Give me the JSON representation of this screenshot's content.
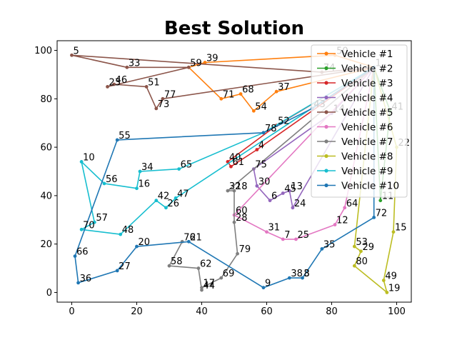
{
  "chart_data": {
    "type": "line",
    "title": "Best Solution",
    "xlabel": "",
    "ylabel": "",
    "xlim": [
      -4.5,
      104.5
    ],
    "ylim": [
      -4,
      104
    ],
    "xticks": [
      0,
      20,
      40,
      60,
      80,
      100
    ],
    "yticks": [
      0,
      20,
      40,
      60,
      80,
      100
    ],
    "grid": false,
    "legend_position": "top-right",
    "depot": {
      "id": "1",
      "x": 93,
      "y": 93
    },
    "series": [
      {
        "name": "Vehicle #1",
        "color": "#ff7f0e",
        "nodes": [
          "1",
          "50",
          "39",
          "59",
          "71",
          "68",
          "54",
          "37",
          "1"
        ],
        "points": [
          [
            93,
            93
          ],
          [
            81,
            98
          ],
          [
            41,
            95
          ],
          [
            36,
            93
          ],
          [
            46,
            80
          ],
          [
            52,
            82
          ],
          [
            56,
            75
          ],
          [
            63,
            83
          ],
          [
            93,
            93
          ]
        ]
      },
      {
        "name": "Vehicle #2",
        "color": "#2ca02c",
        "nodes": [
          "1",
          "11",
          "41",
          "1"
        ],
        "points": [
          [
            93,
            93
          ],
          [
            95,
            38
          ],
          [
            98,
            75
          ],
          [
            93,
            93
          ]
        ]
      },
      {
        "name": "Vehicle #3",
        "color": "#d62728",
        "nodes": [
          "1",
          "52",
          "40",
          "61",
          "4",
          "1"
        ],
        "points": [
          [
            93,
            93
          ],
          [
            63,
            69
          ],
          [
            48,
            54
          ],
          [
            49,
            52
          ],
          [
            57,
            59
          ],
          [
            93,
            93
          ]
        ]
      },
      {
        "name": "Vehicle #4",
        "color": "#9467bd",
        "nodes": [
          "1",
          "14",
          "75",
          "30",
          "6",
          "45",
          "13",
          "24",
          "1"
        ],
        "points": [
          [
            93,
            93
          ],
          [
            80,
            74
          ],
          [
            56,
            51
          ],
          [
            57,
            44
          ],
          [
            61,
            38
          ],
          [
            65,
            41
          ],
          [
            67,
            42
          ],
          [
            68,
            35
          ],
          [
            93,
            93
          ]
        ]
      },
      {
        "name": "Vehicle #5",
        "color": "#8c564b",
        "nodes": [
          "1",
          "74",
          "5",
          "33",
          "59",
          "23",
          "46",
          "51",
          "73",
          "77",
          "1"
        ],
        "points": [
          [
            93,
            93
          ],
          [
            77,
            91
          ],
          [
            0,
            98
          ],
          [
            17,
            93
          ],
          [
            36,
            93
          ],
          [
            11,
            85
          ],
          [
            13,
            86
          ],
          [
            23,
            85
          ],
          [
            26,
            76
          ],
          [
            28,
            80
          ],
          [
            93,
            93
          ]
        ]
      },
      {
        "name": "Vehicle #6",
        "color": "#e377c2",
        "nodes": [
          "1",
          "64",
          "12",
          "25",
          "7",
          "31",
          "60",
          "1"
        ],
        "points": [
          [
            93,
            93
          ],
          [
            84,
            35
          ],
          [
            81,
            28
          ],
          [
            69,
            22
          ],
          [
            65,
            22
          ],
          [
            60,
            25
          ],
          [
            50,
            32
          ],
          [
            93,
            93
          ]
        ]
      },
      {
        "name": "Vehicle #7",
        "color": "#7f7f7f",
        "nodes": [
          "1",
          "32",
          "18",
          "28",
          "79",
          "69",
          "17",
          "44",
          "62",
          "58",
          "76"
        ],
        "points": [
          [
            93,
            93
          ],
          [
            48,
            42
          ],
          [
            50,
            42
          ],
          [
            50,
            29
          ],
          [
            51,
            16
          ],
          [
            46,
            6
          ],
          [
            40,
            2
          ],
          [
            40,
            1
          ],
          [
            39,
            10
          ],
          [
            30,
            11
          ],
          [
            34,
            21
          ]
        ]
      },
      {
        "name": "Vehicle #8",
        "color": "#bcbd22",
        "nodes": [
          "1",
          "22",
          "15",
          "49",
          "19",
          "80",
          "29",
          "53",
          "1"
        ],
        "points": [
          [
            93,
            93
          ],
          [
            100,
            60
          ],
          [
            99,
            25
          ],
          [
            96,
            5
          ],
          [
            97,
            0
          ],
          [
            87,
            11
          ],
          [
            89,
            17
          ],
          [
            87,
            19
          ],
          [
            93,
            93
          ]
        ]
      },
      {
        "name": "Vehicle #9",
        "color": "#17becf",
        "nodes": [
          "1",
          "78",
          "65",
          "34",
          "16",
          "56",
          "10",
          "57",
          "70",
          "48",
          "42",
          "26",
          "47",
          "1"
        ],
        "points": [
          [
            93,
            93
          ],
          [
            59,
            66
          ],
          [
            33,
            51
          ],
          [
            21,
            50
          ],
          [
            20,
            43
          ],
          [
            10,
            45
          ],
          [
            3,
            54
          ],
          [
            7,
            29
          ],
          [
            3,
            26
          ],
          [
            15,
            24
          ],
          [
            26,
            38
          ],
          [
            29,
            35
          ],
          [
            32,
            39
          ],
          [
            93,
            93
          ]
        ]
      },
      {
        "name": "Vehicle #10",
        "color": "#1f77b4",
        "nodes": [
          "1",
          "72",
          "35",
          "3",
          "38",
          "9",
          "21",
          "20",
          "27",
          "36",
          "66",
          "55",
          "78",
          "43",
          "1"
        ],
        "points": [
          [
            93,
            93
          ],
          [
            93,
            31
          ],
          [
            77,
            18
          ],
          [
            71,
            6
          ],
          [
            67,
            6
          ],
          [
            59,
            2
          ],
          [
            36,
            21
          ],
          [
            20,
            19
          ],
          [
            14,
            9
          ],
          [
            2,
            4
          ],
          [
            1,
            15
          ],
          [
            14,
            63
          ],
          [
            59,
            66
          ],
          [
            74,
            76
          ],
          [
            93,
            93
          ]
        ]
      }
    ],
    "hidden_labels": [
      {
        "id": "8",
        "x": 71,
        "y": 6
      }
    ]
  }
}
